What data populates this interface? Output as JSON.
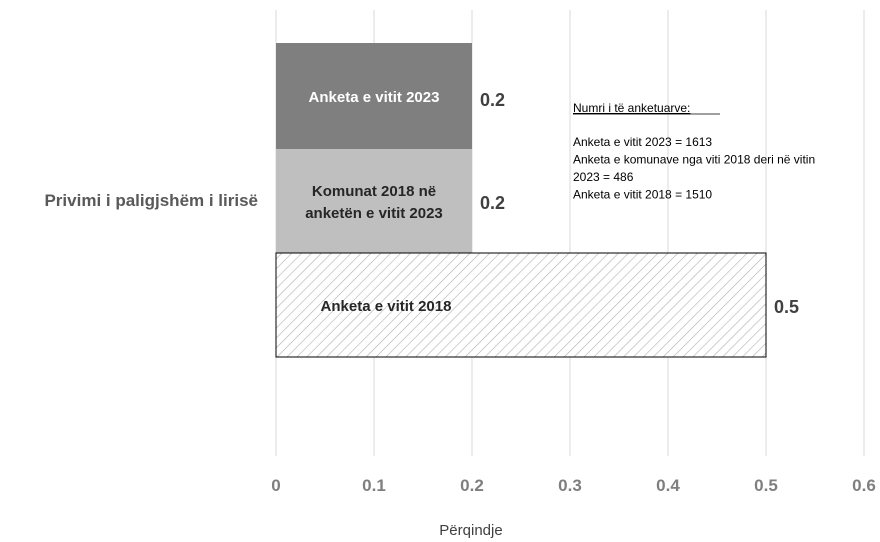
{
  "chart_data": {
    "type": "bar",
    "orientation": "horizontal",
    "category": "Privimi i paligjshëm i lirisë",
    "xlabel": "Përqindje",
    "xlim": [
      0,
      0.6
    ],
    "xticks": [
      "0",
      "0.1",
      "0.2",
      "0.3",
      "0.4",
      "0.5",
      "0.6"
    ],
    "grid": true,
    "series": [
      {
        "name": "Anketa e vitit 2023",
        "value": 0.2,
        "value_label": "0.2",
        "bar_label": [
          "Anketa e vitit 2023"
        ],
        "color": "#7f7f7f",
        "label_color": "#ffffff",
        "fill": "solid"
      },
      {
        "name": "Komunat 2018 në anketën e vitit 2023",
        "value": 0.2,
        "value_label": "0.2",
        "bar_label": [
          "Komunat  2018 në",
          "anketën e vitit 2023"
        ],
        "color": "#bfbfbf",
        "label_color": "#262626",
        "fill": "solid"
      },
      {
        "name": "Anketa e vitit 2018",
        "value": 0.5,
        "value_label": "0.5",
        "bar_label": [
          "Anketa e vitit 2018"
        ],
        "color": "#ffffff",
        "label_color": "#262626",
        "fill": "hatched"
      }
    ],
    "annotation": {
      "title": "Numri i të anketuarve:",
      "lines": [
        "Anketa e vitit 2023 = 1613",
        "Anketa e komunave nga viti 2018 deri në vitin",
        "2023 = 486",
        "Anketa e vitit 2018 = 1510"
      ]
    }
  }
}
